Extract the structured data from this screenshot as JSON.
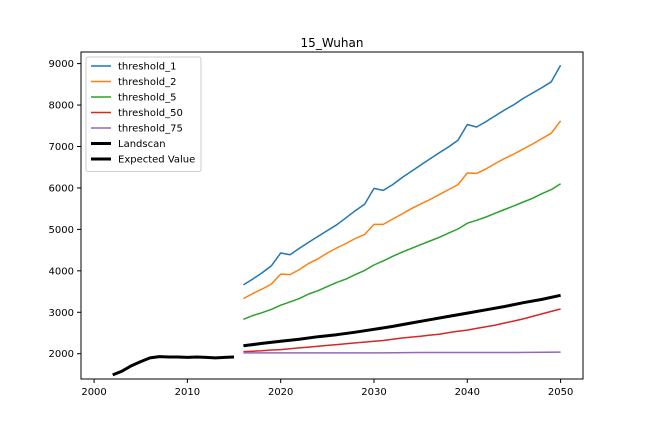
{
  "chart_data": {
    "type": "line",
    "title": "15_Wuhan",
    "xlabel": "",
    "ylabel": "",
    "xlim": [
      1998.6,
      2052.4
    ],
    "ylim": [
      1390,
      9280
    ],
    "xticks": [
      2000,
      2010,
      2020,
      2030,
      2040,
      2050
    ],
    "yticks": [
      2000,
      3000,
      4000,
      5000,
      6000,
      7000,
      8000,
      9000
    ],
    "grid": false,
    "legend_position": "top-left",
    "series": [
      {
        "name": "threshold_1",
        "color": "#1f77b4",
        "linewidth": 1.5,
        "x": [
          2016,
          2017,
          2018,
          2019,
          2020,
          2021,
          2022,
          2023,
          2024,
          2025,
          2026,
          2027,
          2028,
          2029,
          2030,
          2031,
          2032,
          2033,
          2034,
          2035,
          2036,
          2037,
          2038,
          2039,
          2040,
          2041,
          2042,
          2043,
          2044,
          2045,
          2046,
          2047,
          2048,
          2049,
          2050
        ],
        "y": [
          3660,
          3800,
          3950,
          4120,
          4430,
          4390,
          4540,
          4690,
          4830,
          4970,
          5110,
          5280,
          5450,
          5610,
          5990,
          5940,
          6080,
          6250,
          6400,
          6550,
          6700,
          6850,
          6990,
          7150,
          7530,
          7470,
          7600,
          7740,
          7880,
          8010,
          8160,
          8290,
          8420,
          8560,
          8960
        ]
      },
      {
        "name": "threshold_2",
        "color": "#ff7f0e",
        "linewidth": 1.5,
        "x": [
          2016,
          2017,
          2018,
          2019,
          2020,
          2021,
          2022,
          2023,
          2024,
          2025,
          2026,
          2027,
          2028,
          2029,
          2030,
          2031,
          2032,
          2033,
          2034,
          2035,
          2036,
          2037,
          2038,
          2039,
          2040,
          2041,
          2042,
          2043,
          2044,
          2045,
          2046,
          2047,
          2048,
          2049,
          2050
        ],
        "y": [
          3330,
          3450,
          3560,
          3680,
          3920,
          3910,
          4030,
          4180,
          4290,
          4430,
          4550,
          4660,
          4780,
          4880,
          5120,
          5120,
          5250,
          5370,
          5500,
          5610,
          5720,
          5840,
          5960,
          6080,
          6360,
          6350,
          6460,
          6590,
          6710,
          6820,
          6940,
          7060,
          7190,
          7320,
          7620
        ]
      },
      {
        "name": "threshold_5",
        "color": "#2ca02c",
        "linewidth": 1.5,
        "x": [
          2016,
          2017,
          2018,
          2019,
          2020,
          2021,
          2022,
          2023,
          2024,
          2025,
          2026,
          2027,
          2028,
          2029,
          2030,
          2031,
          2032,
          2033,
          2034,
          2035,
          2036,
          2037,
          2038,
          2039,
          2040,
          2041,
          2042,
          2043,
          2044,
          2045,
          2046,
          2047,
          2048,
          2049,
          2050
        ],
        "y": [
          2830,
          2920,
          2990,
          3070,
          3170,
          3250,
          3330,
          3440,
          3520,
          3620,
          3720,
          3800,
          3910,
          4010,
          4140,
          4240,
          4350,
          4450,
          4540,
          4630,
          4720,
          4810,
          4910,
          5010,
          5150,
          5220,
          5300,
          5390,
          5480,
          5570,
          5660,
          5750,
          5860,
          5960,
          6100
        ]
      },
      {
        "name": "threshold_50",
        "color": "#d62728",
        "linewidth": 1.5,
        "x": [
          2016,
          2017,
          2018,
          2019,
          2020,
          2021,
          2022,
          2023,
          2024,
          2025,
          2026,
          2027,
          2028,
          2029,
          2030,
          2031,
          2032,
          2033,
          2034,
          2035,
          2036,
          2037,
          2038,
          2039,
          2040,
          2041,
          2042,
          2043,
          2044,
          2045,
          2046,
          2047,
          2048,
          2049,
          2050
        ],
        "y": [
          2050,
          2060,
          2070,
          2090,
          2100,
          2120,
          2140,
          2160,
          2180,
          2200,
          2220,
          2240,
          2260,
          2280,
          2300,
          2320,
          2350,
          2380,
          2400,
          2420,
          2450,
          2470,
          2510,
          2540,
          2570,
          2610,
          2650,
          2690,
          2740,
          2790,
          2840,
          2900,
          2960,
          3020,
          3080
        ]
      },
      {
        "name": "threshold_75",
        "color": "#9467bd",
        "linewidth": 1.5,
        "x": [
          2016,
          2020,
          2025,
          2030,
          2035,
          2040,
          2045,
          2050
        ],
        "y": [
          2020,
          2020,
          2020,
          2020,
          2030,
          2030,
          2030,
          2040
        ]
      },
      {
        "name": "Landscan",
        "color": "#000000",
        "linewidth": 3,
        "x": [
          2002,
          2003,
          2004,
          2005,
          2006,
          2007,
          2008,
          2009,
          2010,
          2011,
          2012,
          2013,
          2014,
          2015
        ],
        "y": [
          1490,
          1580,
          1710,
          1810,
          1900,
          1930,
          1920,
          1920,
          1910,
          1920,
          1910,
          1900,
          1910,
          1920
        ]
      },
      {
        "name": "Expected Value",
        "color": "#000000",
        "linewidth": 3,
        "x": [
          2016,
          2018,
          2020,
          2022,
          2024,
          2026,
          2028,
          2030,
          2032,
          2034,
          2036,
          2038,
          2040,
          2042,
          2044,
          2046,
          2048,
          2050
        ],
        "y": [
          2190,
          2250,
          2300,
          2350,
          2410,
          2460,
          2520,
          2590,
          2660,
          2740,
          2820,
          2900,
          2980,
          3060,
          3140,
          3230,
          3310,
          3410
        ]
      }
    ]
  }
}
